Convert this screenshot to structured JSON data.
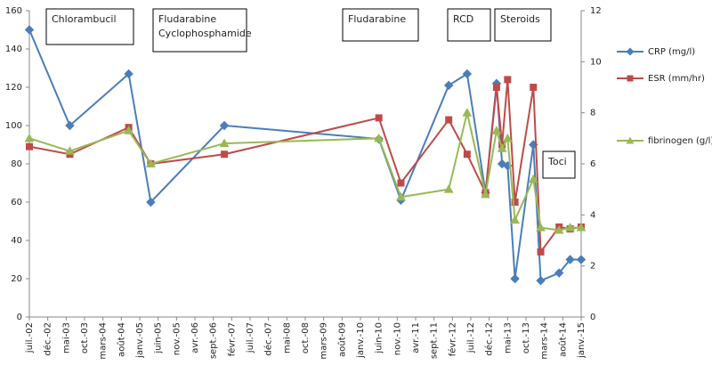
{
  "chart_data": {
    "type": "line",
    "x": [
      0,
      11,
      27,
      33,
      53,
      95,
      101,
      114,
      119,
      124,
      127,
      128.5,
      130,
      132,
      137,
      139,
      144,
      147,
      150
    ],
    "xlim": [
      0,
      150
    ],
    "xticks": [
      {
        "value": 0,
        "label": "juil.-02"
      },
      {
        "value": 5,
        "label": "déc.-02"
      },
      {
        "value": 10,
        "label": "mai-03"
      },
      {
        "value": 15,
        "label": "oct.-03"
      },
      {
        "value": 20,
        "label": "mars-04"
      },
      {
        "value": 25,
        "label": "août-04"
      },
      {
        "value": 30,
        "label": "janv.-05"
      },
      {
        "value": 35,
        "label": "juin-05"
      },
      {
        "value": 40,
        "label": "nov.-05"
      },
      {
        "value": 45,
        "label": "avr.-06"
      },
      {
        "value": 50,
        "label": "sept.-06"
      },
      {
        "value": 55,
        "label": "févr.-07"
      },
      {
        "value": 60,
        "label": "juil.-07"
      },
      {
        "value": 65,
        "label": "déc.-07"
      },
      {
        "value": 70,
        "label": "mai-08"
      },
      {
        "value": 75,
        "label": "oct.-08"
      },
      {
        "value": 80,
        "label": "mars-09"
      },
      {
        "value": 85,
        "label": "août-09"
      },
      {
        "value": 90,
        "label": "janv.-10"
      },
      {
        "value": 95,
        "label": "juin-10"
      },
      {
        "value": 100,
        "label": "nov.-10"
      },
      {
        "value": 105,
        "label": "avr.-11"
      },
      {
        "value": 110,
        "label": "sept.-11"
      },
      {
        "value": 115,
        "label": "févr.-12"
      },
      {
        "value": 120,
        "label": "juil.-12"
      },
      {
        "value": 125,
        "label": "déc.-12"
      },
      {
        "value": 130,
        "label": "mai-13"
      },
      {
        "value": 135,
        "label": "oct.-13"
      },
      {
        "value": 140,
        "label": "mars-14"
      },
      {
        "value": 145,
        "label": "août-14"
      },
      {
        "value": 150,
        "label": "janv.-15"
      }
    ],
    "ylim": [
      0,
      160
    ],
    "yticks": [
      0,
      20,
      40,
      60,
      80,
      100,
      120,
      140,
      160
    ],
    "y2lim": [
      0,
      12
    ],
    "y2ticks": [
      0,
      2,
      4,
      6,
      8,
      10,
      12
    ],
    "series": [
      {
        "name": "CRP (mg/l)",
        "color": "#4a7ebb",
        "marker": "diamond",
        "values": [
          150,
          100,
          127,
          60,
          100,
          93,
          61,
          121,
          127,
          65,
          122,
          80,
          79,
          20,
          90,
          19,
          23,
          30,
          30
        ]
      },
      {
        "name": "ESR (mm/hr)",
        "color": "#be4b48",
        "marker": "square",
        "values": [
          89,
          85,
          99,
          80,
          85,
          104,
          70,
          103,
          85,
          65,
          120,
          90,
          124,
          60,
          120,
          34,
          47,
          46,
          47
        ]
      },
      {
        "name": "fibrinogen (g/l)",
        "color": "#98b954",
        "marker": "triangle",
        "axis": "y2",
        "values": [
          7.0,
          6.5,
          7.3,
          6.0,
          6.8,
          7.0,
          4.7,
          5.0,
          8.0,
          4.8,
          7.3,
          6.6,
          7.0,
          3.8,
          5.4,
          3.5,
          3.4,
          3.5,
          3.5
        ]
      }
    ],
    "annotations": [
      [
        "Chlorambucil"
      ],
      [
        "Fludarabine",
        "Cyclophosphamide"
      ],
      [
        "Fludarabine"
      ],
      [
        "RCD"
      ],
      [
        "Steroids"
      ],
      [
        "Toci"
      ]
    ]
  }
}
